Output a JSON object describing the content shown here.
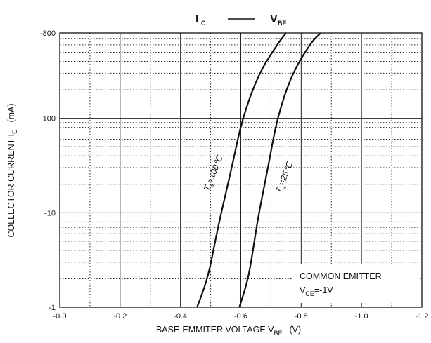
{
  "chart_data": {
    "type": "line",
    "title": {
      "left": "I",
      "left_sub": "C",
      "dash": "——",
      "right": "V",
      "right_sub": "BE"
    },
    "xlabel": {
      "text": "BASE-EMMITER VOLTAGE  V",
      "sub": "BE",
      "unit": "(V)"
    },
    "ylabel": {
      "text": "COLLECTOR CURRENT   I",
      "sub": "C",
      "unit": "(mA)"
    },
    "x_ticks": [
      "-0.0",
      "-0.2",
      "-0.4",
      "-0.6",
      "-0.8",
      "-1.0",
      "-1.2"
    ],
    "y_ticks": [
      "-1",
      "-10",
      "-100",
      "-800"
    ],
    "xlim": [
      0,
      -1.2
    ],
    "ylim": [
      -1,
      -800
    ],
    "y_scale": "log",
    "grid": true,
    "series": [
      {
        "label_main": "T",
        "label_sub": "a",
        "label_rest": "=100℃",
        "points": [
          [
            -0.455,
            -1
          ],
          [
            -0.49,
            -2
          ],
          [
            -0.515,
            -5
          ],
          [
            -0.535,
            -10
          ],
          [
            -0.57,
            -30
          ],
          [
            -0.605,
            -100
          ],
          [
            -0.66,
            -300
          ],
          [
            -0.72,
            -600
          ],
          [
            -0.75,
            -800
          ]
        ]
      },
      {
        "label_main": "T",
        "label_sub": "a",
        "label_rest": "=25℃",
        "points": [
          [
            -0.595,
            -1
          ],
          [
            -0.625,
            -2
          ],
          [
            -0.645,
            -5
          ],
          [
            -0.66,
            -10
          ],
          [
            -0.69,
            -30
          ],
          [
            -0.72,
            -100
          ],
          [
            -0.77,
            -300
          ],
          [
            -0.835,
            -650
          ],
          [
            -0.865,
            -800
          ]
        ]
      }
    ],
    "annotation": {
      "line1": "COMMON EMITTER",
      "line2_main": "V",
      "line2_sub": "CE",
      "line2_rest": "=-1V"
    }
  }
}
